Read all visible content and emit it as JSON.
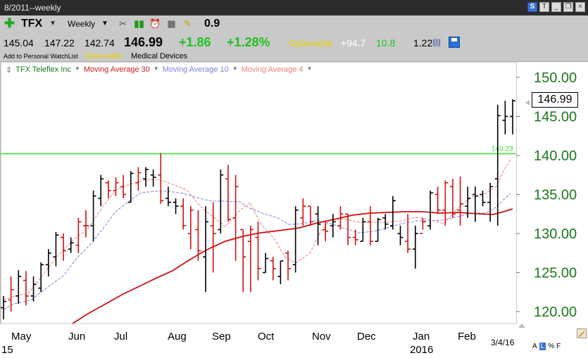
{
  "window": {
    "title": "8/2011--weekly"
  },
  "toolbar": {
    "symbol": "TFX",
    "period": "Weekly",
    "score": "0.9",
    "open": "145.04",
    "high": "147.22",
    "low": "142.74",
    "last": "146.99",
    "change": "+1.86",
    "change_pct": "+1.28%",
    "optionable": "Optionable",
    "val1": "+94.7",
    "val2": "10.8",
    "val3": "1.22",
    "add_watchlist": "Add to Personal WatchList",
    "optionable_small": "Optionable",
    "sector": "Medical Devices"
  },
  "legend": {
    "series": [
      {
        "label": "TFX Teleflex Inc",
        "color": "#1a7a1a"
      },
      {
        "label": "Moving Average 30",
        "color": "#d02020"
      },
      {
        "label": "Moving Average 10",
        "color": "#8080e0"
      },
      {
        "label": "Moving Average 4",
        "color": "#f08080"
      }
    ]
  },
  "colors": {
    "up": "#000000",
    "down": "#d01010",
    "axis_text": "#1a7a1a",
    "resistance": "#33dd33"
  },
  "price_label": "146.99",
  "bottom": {
    "date": "3/4/16",
    "ctrl_a": "A",
    "ctrl_l": "L",
    "ctrl_pct": "%",
    "ctrl_f": "F"
  },
  "chart_data": {
    "type": "ohlc",
    "yaxis_ticks": [
      "150.00",
      "145.00",
      "140.00",
      "135.00",
      "130.00",
      "125.00",
      "120.00"
    ],
    "ylim": [
      118.5,
      153.2
    ],
    "x_labels": [
      "May",
      "Jun",
      "Jul",
      "Aug",
      "Sep",
      "Oct",
      "Nov",
      "Dec",
      "Jan",
      "Feb"
    ],
    "year_labels": [
      "15",
      "2016"
    ],
    "resistance": {
      "value": 140.23,
      "label": "140.23"
    },
    "bars": [
      [
        120.5,
        122.0,
        119.0,
        121.3,
        "up"
      ],
      [
        121.5,
        124.5,
        120.0,
        122.8,
        "down"
      ],
      [
        122.0,
        125.3,
        121.0,
        124.5,
        "up"
      ],
      [
        124.0,
        125.2,
        120.8,
        122.0,
        "down"
      ],
      [
        122.0,
        124.5,
        121.3,
        123.5,
        "up"
      ],
      [
        123.0,
        126.3,
        122.5,
        126.0,
        "up"
      ],
      [
        126.0,
        128.0,
        124.5,
        127.5,
        "up"
      ],
      [
        127.0,
        130.2,
        125.8,
        129.8,
        "up"
      ],
      [
        129.5,
        130.0,
        126.5,
        127.8,
        "down"
      ],
      [
        128.0,
        129.5,
        127.5,
        128.8,
        "up"
      ],
      [
        128.5,
        132.0,
        127.5,
        131.5,
        "down"
      ],
      [
        131.0,
        133.0,
        129.5,
        131.0,
        "down"
      ],
      [
        131.0,
        135.5,
        129.0,
        134.8,
        "up"
      ],
      [
        134.5,
        137.5,
        133.5,
        137.0,
        "up"
      ],
      [
        136.5,
        136.8,
        134.5,
        135.5,
        "down"
      ],
      [
        135.5,
        137.2,
        134.8,
        136.5,
        "down"
      ],
      [
        136.0,
        137.5,
        134.5,
        135.0,
        "down"
      ],
      [
        134.0,
        138.0,
        134.0,
        137.7,
        "up"
      ],
      [
        136.5,
        138.5,
        135.5,
        137.8,
        "down"
      ],
      [
        137.0,
        138.5,
        136.0,
        138.2,
        "up"
      ],
      [
        137.5,
        138.2,
        136.0,
        137.2,
        "up"
      ],
      [
        137.5,
        140.3,
        133.8,
        134.2,
        "down"
      ],
      [
        134.5,
        136.0,
        133.5,
        134.0,
        "up"
      ],
      [
        134.0,
        134.5,
        132.5,
        133.5,
        "up"
      ],
      [
        133.5,
        134.5,
        130.5,
        131.0,
        "down"
      ],
      [
        130.0,
        133.5,
        128.0,
        133.0,
        "down"
      ],
      [
        130.5,
        133.0,
        126.5,
        127.8,
        "down"
      ],
      [
        127.0,
        133.5,
        122.5,
        131.5,
        "up"
      ],
      [
        131.0,
        134.0,
        125.0,
        130.0,
        "down"
      ],
      [
        130.5,
        138.2,
        130.0,
        137.5,
        "up"
      ],
      [
        137.0,
        138.8,
        131.5,
        131.8,
        "down"
      ],
      [
        132.0,
        137.5,
        126.5,
        136.0,
        "down"
      ],
      [
        130.5,
        130.5,
        122.5,
        127.0,
        "down"
      ],
      [
        129.0,
        131.0,
        122.5,
        130.5,
        "down"
      ],
      [
        129.5,
        131.5,
        124.0,
        125.5,
        "down"
      ],
      [
        125.0,
        127.5,
        125.0,
        126.8,
        "up"
      ],
      [
        126.5,
        127.0,
        124.0,
        125.5,
        "down"
      ],
      [
        124.5,
        126.5,
        123.5,
        126.5,
        "up"
      ],
      [
        127.5,
        127.8,
        124.0,
        125.5,
        "down"
      ],
      [
        126.0,
        133.5,
        125.0,
        133.0,
        "up"
      ],
      [
        132.0,
        134.5,
        131.0,
        133.5,
        "down"
      ],
      [
        133.5,
        133.5,
        131.0,
        131.5,
        "down"
      ],
      [
        132.5,
        133.5,
        128.5,
        131.2,
        "up"
      ],
      [
        130.5,
        131.5,
        129.0,
        130.3,
        "down"
      ],
      [
        131.0,
        132.5,
        129.5,
        131.5,
        "up"
      ],
      [
        131.0,
        133.5,
        130.5,
        132.5,
        "down"
      ],
      [
        132.5,
        132.5,
        128.5,
        129.5,
        "down"
      ],
      [
        129.5,
        130.5,
        128.5,
        129.2,
        "down"
      ],
      [
        129.0,
        132.0,
        129.0,
        131.5,
        "up"
      ],
      [
        131.5,
        133.5,
        128.5,
        129.0,
        "down"
      ],
      [
        129.0,
        132.0,
        129.0,
        131.8,
        "up"
      ],
      [
        132.0,
        132.5,
        130.5,
        131.2,
        "up"
      ],
      [
        131.0,
        134.8,
        130.5,
        134.2,
        "up"
      ],
      [
        130.0,
        131.0,
        128.5,
        129.5,
        "up"
      ],
      [
        129.0,
        132.5,
        127.5,
        128.0,
        "down"
      ],
      [
        128.0,
        131.0,
        125.5,
        130.0,
        "up"
      ],
      [
        130.0,
        132.0,
        130.5,
        131.5,
        "down"
      ],
      [
        131.0,
        135.5,
        130.5,
        135.2,
        "up"
      ],
      [
        135.0,
        136.0,
        132.5,
        133.0,
        "down"
      ],
      [
        133.0,
        136.8,
        131.0,
        136.5,
        "down"
      ],
      [
        136.0,
        137.0,
        132.0,
        132.5,
        "down"
      ],
      [
        133.0,
        137.3,
        131.0,
        133.8,
        "down"
      ],
      [
        133.5,
        136.0,
        132.0,
        134.5,
        "up"
      ],
      [
        135.0,
        136.0,
        131.5,
        134.8,
        "up"
      ],
      [
        135.0,
        135.5,
        133.5,
        134.0,
        "up"
      ],
      [
        134.0,
        136.5,
        131.5,
        136.0,
        "up"
      ],
      [
        137.0,
        146.5,
        131.0,
        145.1,
        "up"
      ],
      [
        144.5,
        147.0,
        142.7,
        145.0,
        "up"
      ],
      [
        145.0,
        147.2,
        142.7,
        147.0,
        "up"
      ]
    ],
    "ma30": [
      [
        103,
        460
      ],
      [
        125,
        446
      ],
      [
        150,
        432
      ],
      [
        175,
        418
      ],
      [
        200,
        406
      ],
      [
        225,
        394
      ],
      [
        245,
        385
      ],
      [
        265,
        372
      ],
      [
        285,
        360
      ],
      [
        300,
        352
      ],
      [
        320,
        343
      ],
      [
        345,
        336
      ],
      [
        370,
        331
      ],
      [
        395,
        328
      ],
      [
        410,
        326
      ],
      [
        425,
        324
      ],
      [
        450,
        317
      ],
      [
        475,
        312
      ],
      [
        500,
        306
      ],
      [
        525,
        303
      ],
      [
        550,
        302
      ],
      [
        575,
        301
      ],
      [
        600,
        301
      ],
      [
        625,
        303
      ],
      [
        650,
        302
      ],
      [
        680,
        304
      ],
      [
        700,
        305
      ],
      [
        715,
        301
      ],
      [
        728,
        297
      ]
    ],
    "ma10": [
      [
        5,
        440
      ],
      [
        20,
        432
      ],
      [
        45,
        426
      ],
      [
        65,
        410
      ],
      [
        90,
        392
      ],
      [
        110,
        366
      ],
      [
        130,
        346
      ],
      [
        150,
        320
      ],
      [
        165,
        300
      ],
      [
        185,
        285
      ],
      [
        200,
        274
      ],
      [
        220,
        272
      ],
      [
        240,
        272
      ],
      [
        260,
        275
      ],
      [
        280,
        281
      ],
      [
        300,
        286
      ],
      [
        320,
        286
      ],
      [
        340,
        287
      ],
      [
        355,
        296
      ],
      [
        375,
        304
      ],
      [
        395,
        310
      ],
      [
        410,
        319
      ],
      [
        430,
        318
      ],
      [
        450,
        313
      ],
      [
        470,
        318
      ],
      [
        490,
        325
      ],
      [
        510,
        331
      ],
      [
        530,
        329
      ],
      [
        550,
        324
      ],
      [
        570,
        318
      ],
      [
        590,
        314
      ],
      [
        610,
        314
      ],
      [
        630,
        313
      ],
      [
        650,
        308
      ],
      [
        670,
        303
      ],
      [
        690,
        303
      ],
      [
        705,
        294
      ],
      [
        715,
        284
      ],
      [
        725,
        275
      ]
    ],
    "ma4": [
      [
        5,
        426
      ],
      [
        20,
        421
      ],
      [
        40,
        417
      ],
      [
        60,
        392
      ],
      [
        80,
        366
      ],
      [
        105,
        340
      ],
      [
        125,
        325
      ],
      [
        145,
        295
      ],
      [
        165,
        270
      ],
      [
        185,
        262
      ],
      [
        205,
        256
      ],
      [
        225,
        255
      ],
      [
        245,
        262
      ],
      [
        265,
        270
      ],
      [
        285,
        294
      ],
      [
        300,
        306
      ],
      [
        320,
        322
      ],
      [
        340,
        300
      ],
      [
        355,
        288
      ],
      [
        370,
        318
      ],
      [
        390,
        340
      ],
      [
        405,
        366
      ],
      [
        420,
        374
      ],
      [
        440,
        360
      ],
      [
        455,
        330
      ],
      [
        470,
        311
      ],
      [
        490,
        312
      ],
      [
        510,
        316
      ],
      [
        530,
        316
      ],
      [
        550,
        316
      ],
      [
        570,
        314
      ],
      [
        590,
        309
      ],
      [
        610,
        312
      ],
      [
        630,
        318
      ],
      [
        650,
        296
      ],
      [
        670,
        280
      ],
      [
        690,
        275
      ],
      [
        705,
        265
      ],
      [
        715,
        243
      ],
      [
        726,
        225
      ]
    ]
  }
}
